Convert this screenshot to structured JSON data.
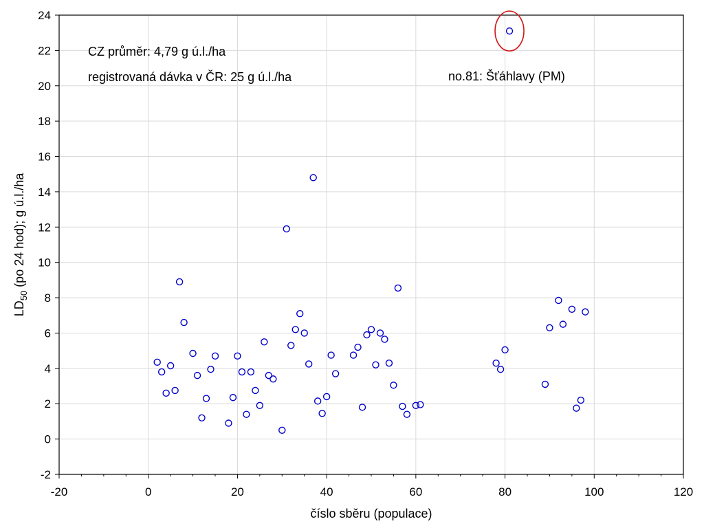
{
  "chart_data": {
    "type": "scatter",
    "title": "",
    "xlabel": "číslo sběru (populace)",
    "ylabel_main": "LD",
    "ylabel_sub": "50",
    "ylabel_rest": " (po 24 hod); g ú.l./ha",
    "xlim": [
      -20,
      120
    ],
    "ylim": [
      -2,
      24
    ],
    "xticks": [
      -20,
      0,
      20,
      40,
      60,
      80,
      100,
      120
    ],
    "yticks": [
      -2,
      0,
      2,
      4,
      6,
      8,
      10,
      12,
      14,
      16,
      18,
      20,
      22,
      24
    ],
    "grid": true,
    "colors": {
      "points": "#0000cc",
      "highlight": "#d01818"
    },
    "annotations": [
      {
        "text": "CZ průměr: 4,79 g ú.l./ha"
      },
      {
        "text": "registrovaná dávka v ČR: 25 g ú.l./ha"
      },
      {
        "text": "no.81: Šťáhlavy (PM)"
      }
    ],
    "highlight_point": {
      "x": 81,
      "y": 23.1
    },
    "points": [
      [
        2,
        4.35
      ],
      [
        3,
        3.8
      ],
      [
        4,
        2.6
      ],
      [
        5,
        4.15
      ],
      [
        6,
        2.75
      ],
      [
        7,
        8.9
      ],
      [
        8,
        6.6
      ],
      [
        10,
        4.85
      ],
      [
        11,
        3.6
      ],
      [
        12,
        1.2
      ],
      [
        13,
        2.3
      ],
      [
        14,
        3.95
      ],
      [
        15,
        4.7
      ],
      [
        18,
        0.9
      ],
      [
        19,
        2.35
      ],
      [
        20,
        4.7
      ],
      [
        21,
        3.8
      ],
      [
        22,
        1.4
      ],
      [
        23,
        3.8
      ],
      [
        24,
        2.75
      ],
      [
        25,
        1.9
      ],
      [
        26,
        5.5
      ],
      [
        27,
        3.6
      ],
      [
        28,
        3.4
      ],
      [
        30,
        0.5
      ],
      [
        31,
        11.9
      ],
      [
        32,
        5.3
      ],
      [
        33,
        6.2
      ],
      [
        34,
        7.1
      ],
      [
        35,
        6.0
      ],
      [
        36,
        4.25
      ],
      [
        37,
        14.8
      ],
      [
        38,
        2.15
      ],
      [
        39,
        1.45
      ],
      [
        40,
        2.4
      ],
      [
        41,
        4.75
      ],
      [
        42,
        3.7
      ],
      [
        46,
        4.75
      ],
      [
        47,
        5.2
      ],
      [
        48,
        1.8
      ],
      [
        49,
        5.9
      ],
      [
        50,
        6.2
      ],
      [
        51,
        4.2
      ],
      [
        52,
        6.0
      ],
      [
        53,
        5.65
      ],
      [
        54,
        4.3
      ],
      [
        55,
        3.05
      ],
      [
        56,
        8.55
      ],
      [
        57,
        1.85
      ],
      [
        58,
        1.4
      ],
      [
        60,
        1.9
      ],
      [
        61,
        1.95
      ],
      [
        78,
        4.3
      ],
      [
        79,
        3.95
      ],
      [
        80,
        5.05
      ],
      [
        81,
        23.1
      ],
      [
        89,
        3.1
      ],
      [
        90,
        6.3
      ],
      [
        92,
        7.85
      ],
      [
        93,
        6.5
      ],
      [
        95,
        7.35
      ],
      [
        96,
        1.75
      ],
      [
        97,
        2.2
      ],
      [
        98,
        7.2
      ]
    ]
  }
}
